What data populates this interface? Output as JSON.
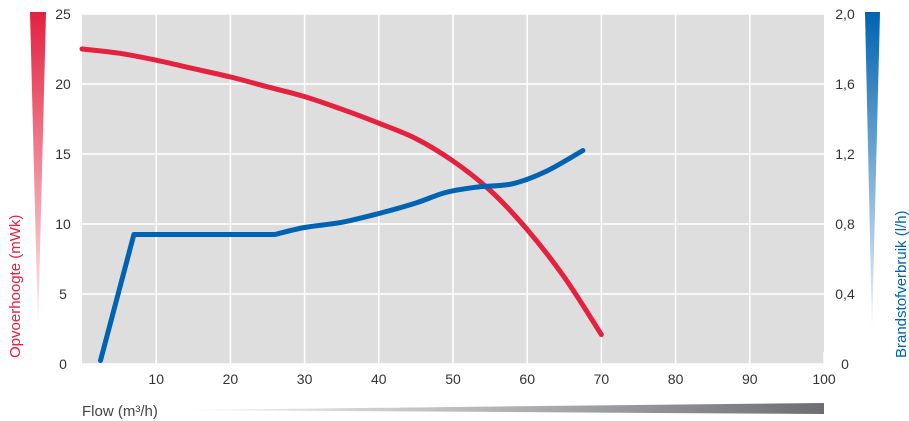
{
  "chart_data": {
    "type": "line",
    "xlabel": "Flow (m³/h)",
    "ylabel": "Opvoerhoogte (mWk)",
    "y2label": "Brandstofverbruik (l/h)",
    "xlim": [
      0,
      100
    ],
    "ylim": [
      0,
      25
    ],
    "y2lim": [
      0,
      2.0
    ],
    "x_ticks": [
      "10",
      "20",
      "30",
      "40",
      "50",
      "60",
      "70",
      "80",
      "90",
      "100"
    ],
    "y_ticks": [
      "0",
      "5",
      "10",
      "15",
      "20",
      "25"
    ],
    "y2_ticks": [
      "0",
      "0,4",
      "0,8",
      "1,2",
      "1,6",
      "2,0"
    ],
    "grid": true,
    "series": [
      {
        "axis": "left",
        "color": "#e4213f",
        "x": [
          0,
          5,
          10,
          15,
          20,
          25,
          30,
          35,
          40,
          45,
          50,
          55,
          60,
          65,
          70
        ],
        "values": [
          22.5,
          22.2,
          21.7,
          21.1,
          20.5,
          19.8,
          19.1,
          18.2,
          17.2,
          16.1,
          14.5,
          12.4,
          9.6,
          6.2,
          2.1
        ]
      },
      {
        "axis": "right",
        "color": "#0063b1",
        "x": [
          2.5,
          7,
          13,
          20,
          26,
          30,
          35,
          40,
          45,
          49,
          53,
          58,
          62.5,
          67.5
        ],
        "values": [
          0.02,
          0.74,
          0.74,
          0.74,
          0.74,
          0.78,
          0.81,
          0.86,
          0.92,
          0.98,
          1.01,
          1.03,
          1.1,
          1.22
        ]
      }
    ]
  }
}
